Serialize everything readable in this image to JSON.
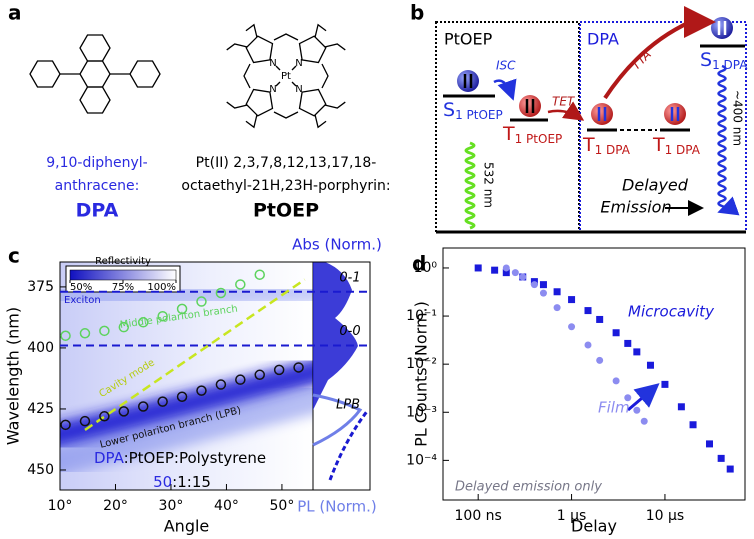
{
  "panel_a": {
    "label": "a",
    "dpa": {
      "name_lines": [
        "9,10-diphenyl-",
        "anthracene:"
      ],
      "short": "DPA"
    },
    "ptoep": {
      "name_lines": [
        "Pt(II) 2,3,7,8,12,13,17,18-",
        "octaethyl-21H,23H-porphyrin:"
      ],
      "short": "PtOEP",
      "metal": "Pt",
      "nitrogen": "N"
    }
  },
  "panel_b": {
    "label": "b",
    "left_title": "PtOEP",
    "right_title": "DPA",
    "isc": "ISC",
    "tet": "TET",
    "tta": "TTA",
    "s1_ptoep": {
      "symbol": "S",
      "subscript": "1 PtOEP"
    },
    "t1_ptoep": {
      "symbol": "T",
      "subscript": "1 PtOEP"
    },
    "t1_dpa": {
      "symbol": "T",
      "subscript": "1 DPA"
    },
    "s1_dpa": {
      "symbol": "S",
      "subscript": "1 DPA"
    },
    "excitation": "532 nm",
    "emission_wavelength": "~400 nm",
    "delayed_emission": [
      "Delayed",
      "Emission"
    ]
  },
  "chart_data": [
    {
      "type": "scatter",
      "panel": "c",
      "x_label": "Angle",
      "y_label": "Wavelength (nm)",
      "xlim": [
        10,
        55.6
      ],
      "ylim": [
        364.8,
        458.2
      ],
      "y_inverted": true,
      "xticks": [
        {
          "value": 10,
          "label": "10°"
        },
        {
          "value": 20,
          "label": "20°"
        },
        {
          "value": 30,
          "label": "30°"
        },
        {
          "value": 40,
          "label": "40°"
        },
        {
          "value": 50,
          "label": "50°"
        }
      ],
      "yticks": [
        375,
        400,
        425,
        450
      ],
      "colorbar": {
        "label": "Reflectivity",
        "lim": [
          50,
          100
        ],
        "ticks": [
          {
            "value": 50,
            "label": "50%"
          },
          {
            "value": 75,
            "label": "75%"
          },
          {
            "value": 100,
            "label": "100%"
          }
        ]
      },
      "exciton": {
        "label": "Exciton",
        "lines": [
          {
            "value": 377,
            "label": "0-1"
          },
          {
            "value": 399,
            "label": "0-0"
          }
        ]
      },
      "cavity_mode": {
        "label": "Cavity mode",
        "x": [
          14.5,
          54.1
        ],
        "y": [
          433.6,
          372
        ]
      },
      "series": [
        {
          "name": "Middle polariton branch",
          "color": "#5dd35d",
          "marker": "circle-open",
          "x": [
            11,
            14.5,
            18,
            21.5,
            25,
            28.5,
            32,
            35.5,
            39,
            42.5,
            46
          ],
          "y": [
            395,
            394,
            393,
            391.5,
            389.5,
            387,
            384,
            381,
            377.5,
            374,
            370
          ]
        },
        {
          "name": "Lower polariton branch (LPB)",
          "color": "#111111",
          "marker": "circle-open",
          "x": [
            11,
            14.5,
            18,
            21.5,
            25,
            28.5,
            32,
            35.5,
            39,
            42.5,
            46,
            49.5,
            53
          ],
          "y": [
            431.5,
            430,
            428,
            426,
            424,
            422,
            420,
            417.5,
            415,
            413,
            411,
            409,
            408
          ]
        }
      ],
      "side_panel": {
        "top_label": "Abs (Norm.)",
        "bottom_label": "PL (Norm.)",
        "peak_label": "LPB"
      },
      "sample": {
        "parts": [
          "DPA",
          ":PtOEP:Polystyrene"
        ],
        "ratio": [
          "50",
          ":1:15"
        ]
      }
    },
    {
      "type": "scatter",
      "panel": "d",
      "x_label": "Delay",
      "y_label": "PL Counts (Norm.)",
      "log_x": true,
      "log_y": true,
      "xlim": [
        4.2e-08,
        7.2e-05
      ],
      "ylim": [
        1.5e-05,
        2.6
      ],
      "xticks": [
        {
          "value": 1e-07,
          "label": "100 ns"
        },
        {
          "value": 1e-06,
          "label": "1 µs"
        },
        {
          "value": 1e-05,
          "label": "10 µs"
        }
      ],
      "yticks": [
        {
          "value": 1,
          "label": "10⁰"
        },
        {
          "value": 0.1,
          "label": "10⁻¹"
        },
        {
          "value": 0.01,
          "label": "10⁻²"
        },
        {
          "value": 0.001,
          "label": "10⁻³"
        },
        {
          "value": 0.0001,
          "label": "10⁻⁴"
        }
      ],
      "series": [
        {
          "name": "Microcavity",
          "color": "#1a1adb",
          "marker": "square",
          "x": [
            1e-07,
            1.5e-07,
            2e-07,
            3e-07,
            4e-07,
            5e-07,
            7e-07,
            1e-06,
            1.5e-06,
            2e-06,
            3e-06,
            4e-06,
            5e-06,
            7e-06,
            1e-05,
            1.5e-05,
            2e-05,
            3e-05,
            4e-05,
            5e-05
          ],
          "y": [
            1,
            0.9,
            0.8,
            0.65,
            0.52,
            0.45,
            0.32,
            0.22,
            0.13,
            0.085,
            0.045,
            0.027,
            0.018,
            0.0095,
            0.0038,
            0.0013,
            0.00055,
            0.00022,
            0.00011,
            6.6e-05
          ]
        },
        {
          "name": "Film",
          "color": "#8c8cf0",
          "marker": "circle",
          "x": [
            2e-07,
            2.5e-07,
            3e-07,
            4e-07,
            5e-07,
            7e-07,
            1e-06,
            1.5e-06,
            2e-06,
            3e-06,
            4e-06,
            5e-06,
            6e-06
          ],
          "y": [
            1,
            0.8,
            0.65,
            0.45,
            0.3,
            0.15,
            0.06,
            0.025,
            0.012,
            0.0045,
            0.002,
            0.0011,
            0.00065
          ]
        }
      ],
      "note": "Delayed emission only"
    }
  ]
}
